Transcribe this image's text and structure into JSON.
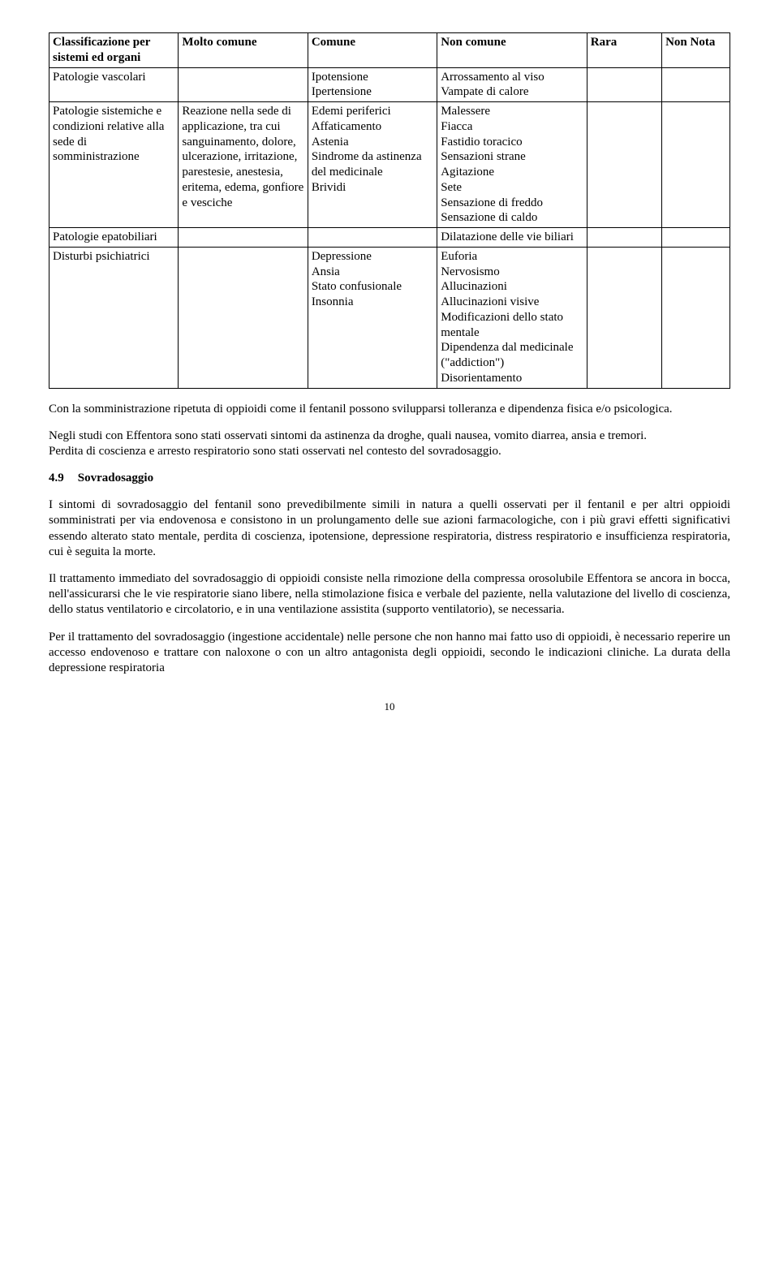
{
  "table": {
    "headers": {
      "h0": "Classificazione per sistemi ed organi",
      "h1": "Molto comune",
      "h2": "Comune",
      "h3": "Non comune",
      "h4": "Rara",
      "h5": "Non Nota"
    },
    "rows": {
      "r0": {
        "c0": "Patologie vascolari",
        "c2": "Ipotensione\nIpertensione",
        "c3": "Arrossamento al viso\nVampate di calore"
      },
      "r1": {
        "c0": "Patologie sistemiche e condizioni relative alla sede di somministrazione",
        "c1": "Reazione nella sede di applicazione, tra cui sanguinamento, dolore, ulcerazione, irritazione, parestesie, anestesia, eritema, edema, gonfiore e vesciche",
        "c2": "Edemi periferici\nAffaticamento\nAstenia\nSindrome da astinenza del medicinale\nBrividi",
        "c3": "Malessere\nFiacca\nFastidio toracico\nSensazioni strane\nAgitazione\nSete\nSensazione di freddo\nSensazione di caldo"
      },
      "r2": {
        "c0": "Patologie epatobiliari",
        "c3": "Dilatazione delle vie biliari"
      },
      "r3": {
        "c0": "Disturbi psichiatrici",
        "c2": "Depressione\nAnsia\nStato confusionale\nInsonnia",
        "c3": "Euforia\nNervosismo\nAllucinazioni\nAllucinazioni visive\nModificazioni dello stato mentale\nDipendenza dal medicinale (\"addiction\")\nDisorientamento"
      }
    }
  },
  "paragraphs": {
    "p1": "Con la somministrazione ripetuta di oppioidi come il fentanil possono svilupparsi tolleranza e dipendenza fisica e/o psicologica.",
    "p2": "Negli studi con Effentora sono stati osservati sintomi da astinenza da droghe, quali nausea, vomito diarrea, ansia e tremori.",
    "p3": "Perdita di coscienza e arresto respiratorio sono stati osservati nel contesto del sovradosaggio."
  },
  "section": {
    "num": "4.9",
    "title": "Sovradosaggio"
  },
  "body": {
    "b1": "I sintomi di sovradosaggio del fentanil sono prevedibilmente simili in natura a quelli osservati per il fentanil e per altri oppioidi somministrati per via endovenosa e consistono in un prolungamento delle sue azioni farmacologiche, con i più gravi effetti significativi essendo alterato stato mentale, perdita di coscienza, ipotensione, depressione respiratoria, distress respiratorio e insufficienza respiratoria, cui è seguita la morte.",
    "b2": "Il trattamento immediato del sovradosaggio di oppioidi consiste nella rimozione della compressa orosolubile Effentora se ancora in bocca, nell'assicurarsi che le vie respiratorie siano libere, nella stimolazione fisica e verbale del paziente, nella valutazione del livello di coscienza, dello status ventilatorio e circolatorio, e in una ventilazione assistita (supporto ventilatorio), se necessaria.",
    "b3": "Per il trattamento del sovradosaggio (ingestione accidentale) nelle persone che non hanno mai fatto uso di oppioidi, è necessario reperire un accesso endovenoso e trattare con  naloxone o con un altro antagonista degli oppioidi, secondo le indicazioni cliniche. La durata della depressione respiratoria"
  },
  "pageNumber": "10"
}
